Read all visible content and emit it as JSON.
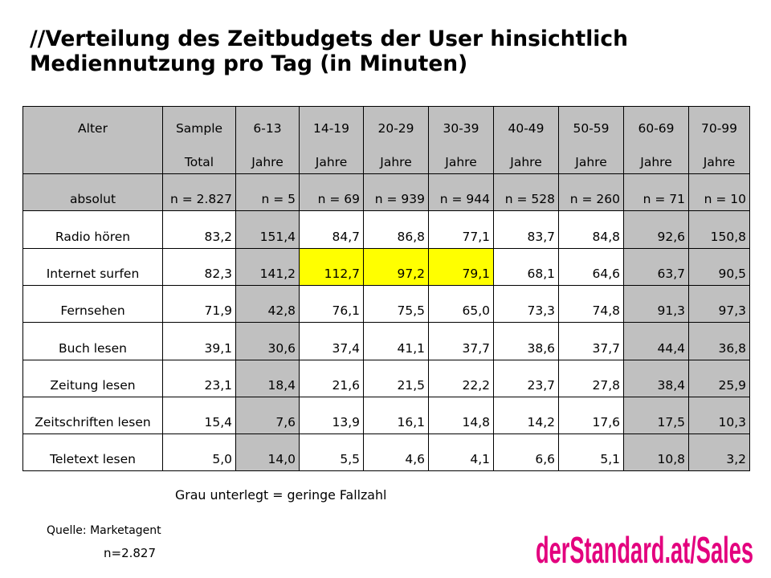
{
  "slide": {
    "title_lines": [
      "//Verteilung des Zeitbudgets der User hinsichtlich",
      "Mediennutzung pro Tag (in Minuten)"
    ]
  },
  "chart_data": {
    "type": "table",
    "row_header": {
      "top": "Alter",
      "n_label": "absolut"
    },
    "columns": [
      {
        "top": "Sample",
        "bottom": "Total",
        "n": "n = 2.827",
        "shaded": false
      },
      {
        "top": "6-13",
        "bottom": "Jahre",
        "n": "n = 5",
        "shaded": true
      },
      {
        "top": "14-19",
        "bottom": "Jahre",
        "n": "n = 69",
        "shaded": false
      },
      {
        "top": "20-29",
        "bottom": "Jahre",
        "n": "n = 939",
        "shaded": false
      },
      {
        "top": "30-39",
        "bottom": "Jahre",
        "n": "n = 944",
        "shaded": false
      },
      {
        "top": "40-49",
        "bottom": "Jahre",
        "n": "n = 528",
        "shaded": false
      },
      {
        "top": "50-59",
        "bottom": "Jahre",
        "n": "n = 260",
        "shaded": false
      },
      {
        "top": "60-69",
        "bottom": "Jahre",
        "n": "n = 71",
        "shaded": true
      },
      {
        "top": "70-99",
        "bottom": "Jahre",
        "n": "n = 10",
        "shaded": true
      }
    ],
    "rows": [
      {
        "label": "Radio hören",
        "values": [
          "83,2",
          "151,4",
          "84,7",
          "86,8",
          "77,1",
          "83,7",
          "84,8",
          "92,6",
          "150,8"
        ]
      },
      {
        "label": "Internet surfen",
        "values": [
          "82,3",
          "141,2",
          "112,7",
          "97,2",
          "79,1",
          "68,1",
          "64,6",
          "63,7",
          "90,5"
        ],
        "highlighted": [
          2,
          3,
          4
        ]
      },
      {
        "label": "Fernsehen",
        "values": [
          "71,9",
          "42,8",
          "76,1",
          "75,5",
          "65,0",
          "73,3",
          "74,8",
          "91,3",
          "97,3"
        ]
      },
      {
        "label": "Buch lesen",
        "values": [
          "39,1",
          "30,6",
          "37,4",
          "41,1",
          "37,7",
          "38,6",
          "37,7",
          "44,4",
          "36,8"
        ]
      },
      {
        "label": "Zeitung lesen",
        "values": [
          "23,1",
          "18,4",
          "21,6",
          "21,5",
          "22,2",
          "23,7",
          "27,8",
          "38,4",
          "25,9"
        ]
      },
      {
        "label": "Zeitschriften lesen",
        "values": [
          "15,4",
          "7,6",
          "13,9",
          "16,1",
          "14,8",
          "14,2",
          "17,6",
          "17,5",
          "10,3"
        ]
      },
      {
        "label": "Teletext lesen",
        "values": [
          "5,0",
          "14,0",
          "5,5",
          "4,6",
          "4,1",
          "6,6",
          "5,1",
          "10,8",
          "3,2"
        ]
      }
    ]
  },
  "footer": {
    "note": "Grau unterlegt = geringe Fallzahl",
    "source": "Quelle: Marketagent",
    "sample": "n=2.827"
  },
  "logo": {
    "text": "derStandard.at/Sales"
  },
  "colors": {
    "shaded": "#c0c0c0",
    "highlight": "#ffff00",
    "logo": "#e3007e"
  }
}
